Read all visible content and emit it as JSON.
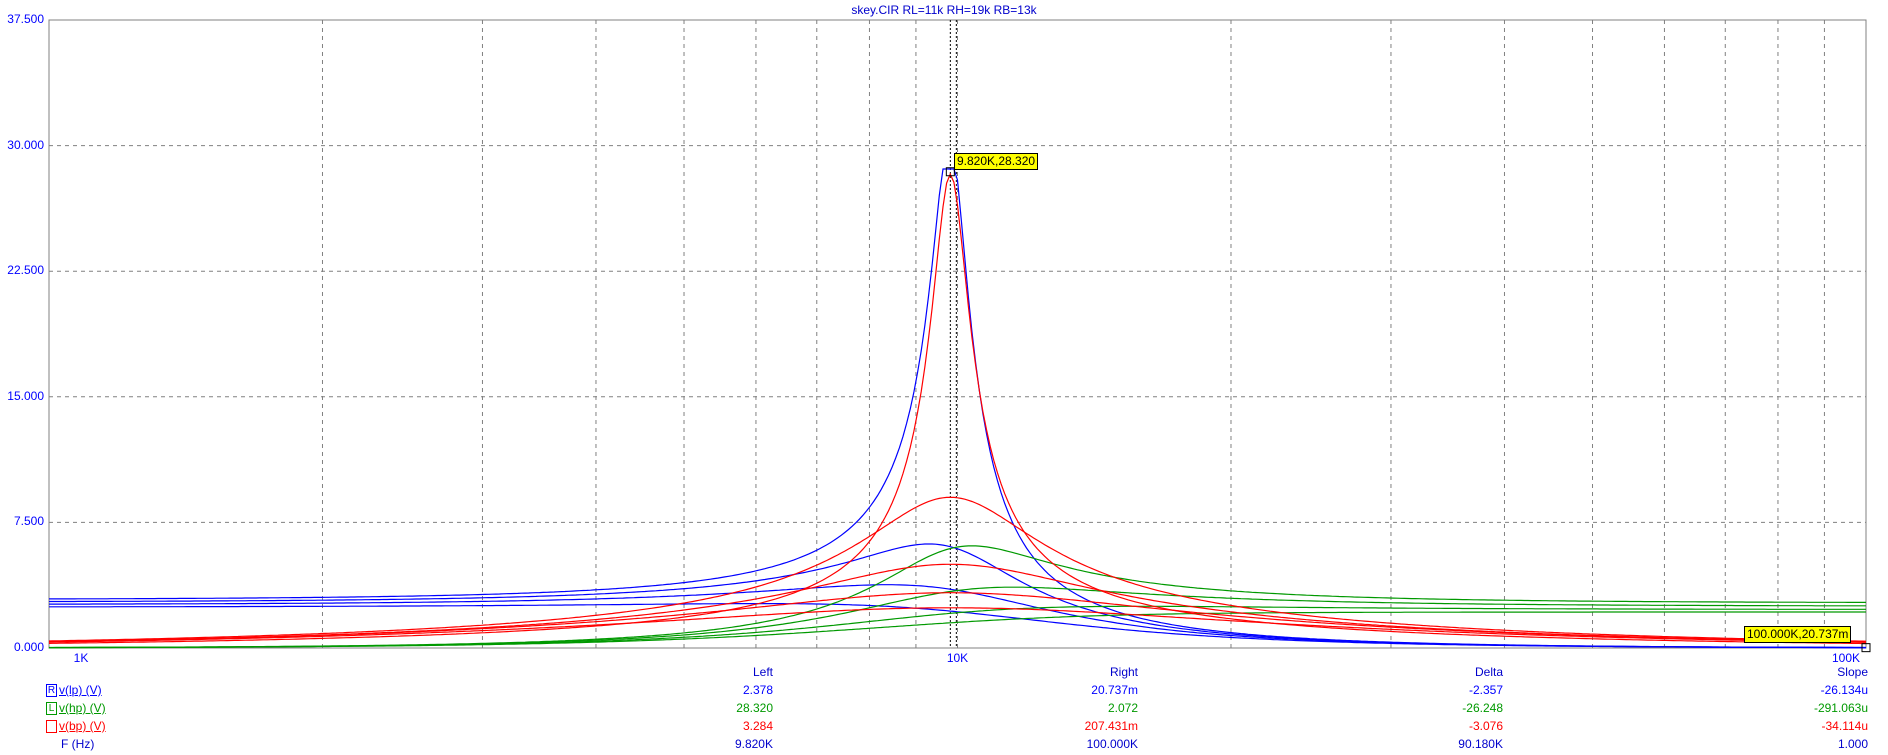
{
  "chart_data": {
    "type": "line",
    "title": "skey.CIR RL=11k RH=19k RB=13k",
    "x_scale": "log",
    "xlim": [
      1000,
      100000
    ],
    "ylim": [
      0,
      37.5
    ],
    "y_ticks": [
      "0.000",
      "7.500",
      "15.000",
      "22.500",
      "30.000",
      "37.500"
    ],
    "x_ticks": [
      "1K",
      "10K",
      "100K"
    ],
    "grid": true,
    "series": [
      {
        "name": "v(lp) (V)",
        "color": "#0000ff",
        "kind": "lp",
        "curves": [
          {
            "low": 2.9,
            "peak": 28.6,
            "q": 10.5
          },
          {
            "low": 2.75,
            "peak": 9.2,
            "q": 2.2
          },
          {
            "low": 2.6,
            "peak": 5.2,
            "q": 1.35
          },
          {
            "low": 2.45,
            "peak": 3.4,
            "q": 0.9
          }
        ]
      },
      {
        "name": "v(hp) (V)",
        "color": "#009900",
        "kind": "hp",
        "curves": [
          {
            "high": 2.7,
            "peak": 9.0,
            "q": 2.2
          },
          {
            "high": 2.5,
            "peak": 5.0,
            "q": 1.35
          },
          {
            "high": 2.3,
            "peak": 3.3,
            "q": 0.9
          },
          {
            "high": 2.15,
            "peak": 2.4,
            "q": 0.7
          }
        ]
      },
      {
        "name": "v(bp) (V)",
        "color": "#ff0000",
        "kind": "bp",
        "curves": [
          {
            "peak": 28.3,
            "q": 10.5
          },
          {
            "peak": 9.0,
            "q": 2.2
          },
          {
            "peak": 5.0,
            "q": 1.35
          },
          {
            "peak": 3.3,
            "q": 0.9
          },
          {
            "peak": 2.4,
            "q": 0.7
          }
        ]
      }
    ],
    "center_frequency": 9820,
    "cursors": [
      {
        "label": "9.820K,28.320",
        "x": 9820,
        "y": 28.32
      },
      {
        "label": "100.000K,20.737m",
        "x": 100000,
        "y": 0.020737
      }
    ]
  },
  "readout": {
    "headers": {
      "left": "Left",
      "right": "Right",
      "delta": "Delta",
      "slope": "Slope"
    },
    "rows": [
      {
        "marker": "R",
        "name": "v(lp) (V)",
        "color": "#0000ff",
        "left": "2.378",
        "right": "20.737m",
        "delta": "-2.357",
        "slope": "-26.134u"
      },
      {
        "marker": "L",
        "name": "v(hp) (V)",
        "color": "#009900",
        "left": "28.320",
        "right": "2.072",
        "delta": "-26.248",
        "slope": "-291.063u"
      },
      {
        "marker": "",
        "name": "v(bp) (V)",
        "color": "#ff0000",
        "left": "3.284",
        "right": "207.431m",
        "delta": "-3.076",
        "slope": "-34.114u"
      },
      {
        "marker": "",
        "name": "F (Hz)",
        "color": "#0000cc",
        "left": "9.820K",
        "right": "100.000K",
        "delta": "90.180K",
        "slope": "1.000"
      }
    ]
  }
}
